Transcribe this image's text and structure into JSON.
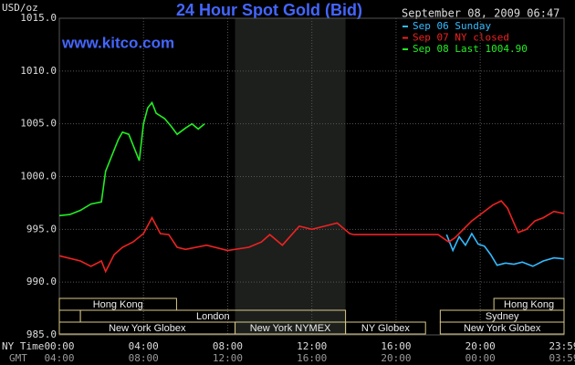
{
  "chart_data": {
    "type": "line",
    "title": "24 Hour Spot Gold (Bid)",
    "y_label": "USD/oz",
    "watermark": "www.kitco.com",
    "timestamp": "September 08, 2009 06:47",
    "x_label": "NY Time",
    "x2_label": "GMT",
    "xlim": [
      0,
      23.983
    ],
    "ylim": [
      985,
      1015
    ],
    "xticks": [
      {
        "value": 0,
        "label": "00:00"
      },
      {
        "value": 4,
        "label": "04:00"
      },
      {
        "value": 8,
        "label": "08:00"
      },
      {
        "value": 12,
        "label": "12:00"
      },
      {
        "value": 16,
        "label": "16:00"
      },
      {
        "value": 20,
        "label": "20:00"
      },
      {
        "value": 23.983,
        "label": "23:59"
      }
    ],
    "x2ticks": [
      {
        "value": 0,
        "label": "04:00"
      },
      {
        "value": 4,
        "label": "08:00"
      },
      {
        "value": 8,
        "label": "12:00"
      },
      {
        "value": 12,
        "label": "16:00"
      },
      {
        "value": 16,
        "label": "20:00"
      },
      {
        "value": 20,
        "label": "00:00"
      },
      {
        "value": 23.983,
        "label": "03:59"
      }
    ],
    "yticks": [
      {
        "value": 985,
        "label": "985.0"
      },
      {
        "value": 990,
        "label": "990.0"
      },
      {
        "value": 995,
        "label": "995.0"
      },
      {
        "value": 1000,
        "label": "1000.0"
      },
      {
        "value": 1005,
        "label": "1005.0"
      },
      {
        "value": 1010,
        "label": "1010.0"
      },
      {
        "value": 1015,
        "label": "1015.0"
      }
    ],
    "grid": true,
    "sessions": [
      {
        "label": "Hong Kong",
        "start": 0,
        "end": 5.57
      },
      {
        "label": "Hong Kong",
        "start": 20.65,
        "end": 23.983
      },
      {
        "label": "London",
        "start": 1,
        "end": 13.6
      },
      {
        "label": "Sydney",
        "start": 18.1,
        "end": 23.983
      },
      {
        "label": "New York Globex",
        "start": 0,
        "end": 8.35
      },
      {
        "label": "New York NYMEX",
        "start": 8.35,
        "end": 13.6
      },
      {
        "label": "NY Globex",
        "start": 13.6,
        "end": 17.4
      },
      {
        "label": "New York Globex",
        "start": 18.1,
        "end": 23.983
      }
    ],
    "series": [
      {
        "name": "Sep 06 Sunday",
        "color": "#33bbff",
        "x": [
          18.4,
          18.7,
          19,
          19.3,
          19.6,
          19.9,
          20.2,
          20.5,
          20.8,
          21.2,
          21.6,
          22,
          22.5,
          23,
          23.5,
          23.98
        ],
        "values": [
          994.5,
          993.0,
          994.3,
          993.5,
          994.6,
          993.6,
          993.4,
          992.6,
          991.6,
          991.8,
          991.7,
          991.9,
          991.5,
          992.0,
          992.3,
          992.2
        ]
      },
      {
        "name": "Sep 07 NY closed",
        "color": "#ee2222",
        "x": [
          0,
          1,
          1.5,
          2,
          2.2,
          2.6,
          3,
          3.5,
          4,
          4.4,
          4.8,
          5.2,
          5.6,
          6,
          7,
          8,
          9,
          9.6,
          10,
          10.6,
          11,
          11.4,
          12,
          12.6,
          13.2,
          13.8,
          14,
          15,
          16,
          17,
          18,
          18.5,
          18.8,
          19.2,
          19.6,
          20,
          20.6,
          21,
          21.3,
          21.6,
          21.8,
          22.2,
          22.6,
          23,
          23.5,
          23.98
        ],
        "values": [
          992.5,
          992.0,
          991.5,
          992.0,
          991.0,
          992.6,
          993.3,
          993.8,
          994.6,
          996.1,
          994.6,
          994.5,
          993.3,
          993.1,
          993.5,
          993.0,
          993.3,
          993.8,
          994.5,
          993.5,
          994.4,
          995.3,
          995.0,
          995.3,
          995.6,
          994.6,
          994.5,
          994.5,
          994.5,
          994.5,
          994.5,
          993.8,
          994.2,
          995.0,
          995.8,
          996.4,
          997.3,
          997.7,
          997.0,
          995.6,
          994.7,
          995.0,
          995.8,
          996.1,
          996.7,
          996.5
        ]
      },
      {
        "name": "Sep 08 Last 1004.90",
        "color": "#22ee22",
        "x": [
          0,
          0.5,
          1,
          1.5,
          2,
          2.2,
          2.5,
          2.8,
          3,
          3.3,
          3.6,
          3.8,
          4,
          4.2,
          4.4,
          4.6,
          5,
          5.3,
          5.6,
          6,
          6.3,
          6.6,
          6.9
        ],
        "values": [
          996.3,
          996.4,
          996.8,
          997.4,
          997.6,
          1000.5,
          1002.0,
          1003.5,
          1004.2,
          1004.0,
          1002.5,
          1001.5,
          1005.0,
          1006.5,
          1007.0,
          1006.0,
          1005.5,
          1004.8,
          1004.0,
          1004.6,
          1005.0,
          1004.5,
          1005.0
        ]
      }
    ]
  }
}
